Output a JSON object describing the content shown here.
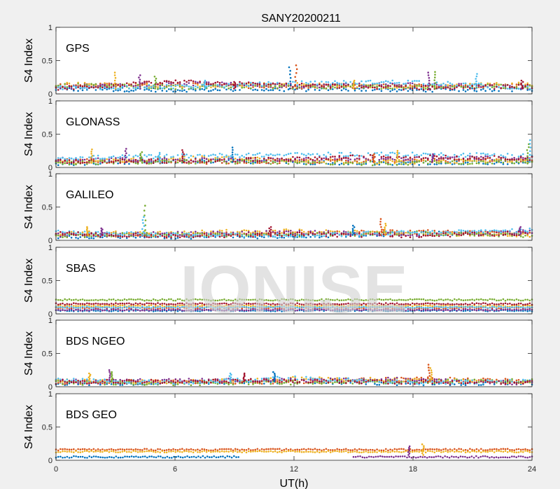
{
  "figure": {
    "title": "SANY20200211",
    "watermark": "IONISE",
    "xlabel": "UT(h)",
    "colors": [
      "#0072BD",
      "#D95319",
      "#EDB120",
      "#7E2F8E",
      "#77AC30",
      "#4DBEEE",
      "#A2142F"
    ]
  },
  "chart_data": [
    {
      "type": "scatter",
      "system": "GPS",
      "ylabel": "S4 Index",
      "xlim": [
        0,
        24
      ],
      "ylim": [
        0,
        1
      ],
      "xticks": [
        "0",
        "6",
        "12",
        "18",
        "24"
      ],
      "yticks": [
        "0",
        "0.5",
        "1"
      ],
      "baseline_range": [
        0.04,
        0.2
      ],
      "spikes": [
        [
          3.0,
          0.32
        ],
        [
          4.2,
          0.28
        ],
        [
          5.0,
          0.26
        ],
        [
          7.5,
          0.2
        ],
        [
          9.0,
          0.18
        ],
        [
          11.8,
          0.4
        ],
        [
          12.1,
          0.43
        ],
        [
          15.0,
          0.2
        ],
        [
          18.8,
          0.32
        ],
        [
          19.1,
          0.33
        ],
        [
          21.2,
          0.3
        ],
        [
          23.5,
          0.2
        ]
      ],
      "series": [
        {
          "values": [
            [
              0,
              0.07
            ],
            [
              6,
              0.06
            ],
            [
              12,
              0.07
            ],
            [
              18,
              0.06
            ],
            [
              24,
              0.07
            ]
          ]
        },
        {
          "values": [
            [
              0,
              0.12
            ],
            [
              6,
              0.14
            ],
            [
              12,
              0.1
            ],
            [
              18,
              0.12
            ],
            [
              24,
              0.13
            ]
          ]
        },
        {
          "values": [
            [
              0,
              0.15
            ],
            [
              6,
              0.12
            ],
            [
              12,
              0.14
            ],
            [
              18,
              0.11
            ],
            [
              24,
              0.15
            ]
          ]
        },
        {
          "values": [
            [
              0,
              0.1
            ],
            [
              6,
              0.16
            ],
            [
              12,
              0.12
            ],
            [
              18,
              0.14
            ],
            [
              24,
              0.1
            ]
          ]
        },
        {
          "values": [
            [
              0,
              0.13
            ],
            [
              6,
              0.1
            ],
            [
              12,
              0.11
            ],
            [
              18,
              0.1
            ],
            [
              24,
              0.12
            ]
          ]
        },
        {
          "values": [
            [
              0,
              0.09
            ],
            [
              6,
              0.11
            ],
            [
              12,
              0.16
            ],
            [
              18,
              0.18
            ],
            [
              24,
              0.09
            ]
          ]
        },
        {
          "values": [
            [
              0,
              0.08
            ],
            [
              6,
              0.18
            ],
            [
              12,
              0.13
            ],
            [
              18,
              0.09
            ],
            [
              24,
              0.11
            ]
          ]
        }
      ]
    },
    {
      "type": "scatter",
      "system": "GLONASS",
      "ylabel": "S4 Index",
      "xlim": [
        0,
        24
      ],
      "ylim": [
        0,
        1
      ],
      "xticks": [
        "0",
        "6",
        "12",
        "18",
        "24"
      ],
      "yticks": [
        "0",
        "0.5",
        "1"
      ],
      "baseline_range": [
        0.03,
        0.2
      ],
      "spikes": [
        [
          1.8,
          0.27
        ],
        [
          3.5,
          0.28
        ],
        [
          4.3,
          0.23
        ],
        [
          5.2,
          0.22
        ],
        [
          6.4,
          0.26
        ],
        [
          8.9,
          0.3
        ],
        [
          16.0,
          0.2
        ],
        [
          17.2,
          0.25
        ],
        [
          19.0,
          0.2
        ],
        [
          23.8,
          0.35
        ],
        [
          23.9,
          0.41
        ]
      ],
      "series": [
        {
          "values": [
            [
              0,
              0.06
            ],
            [
              8,
              0.1
            ],
            [
              16,
              0.06
            ],
            [
              24,
              0.08
            ]
          ]
        },
        {
          "values": [
            [
              0,
              0.1
            ],
            [
              8,
              0.08
            ],
            [
              16,
              0.1
            ],
            [
              24,
              0.12
            ]
          ]
        },
        {
          "values": [
            [
              0,
              0.08
            ],
            [
              8,
              0.15
            ],
            [
              16,
              0.08
            ],
            [
              24,
              0.1
            ]
          ]
        },
        {
          "values": [
            [
              0,
              0.12
            ],
            [
              8,
              0.11
            ],
            [
              16,
              0.13
            ],
            [
              24,
              0.15
            ]
          ]
        },
        {
          "values": [
            [
              0,
              0.07
            ],
            [
              8,
              0.09
            ],
            [
              16,
              0.06
            ],
            [
              24,
              0.09
            ]
          ]
        },
        {
          "values": [
            [
              0,
              0.14
            ],
            [
              8,
              0.18
            ],
            [
              16,
              0.2
            ],
            [
              24,
              0.18
            ]
          ]
        },
        {
          "values": [
            [
              0,
              0.09
            ],
            [
              8,
              0.1
            ],
            [
              16,
              0.16
            ],
            [
              24,
              0.14
            ]
          ]
        }
      ]
    },
    {
      "type": "scatter",
      "system": "GALILEO",
      "ylabel": "S4 Index",
      "xlim": [
        0,
        24
      ],
      "ylim": [
        0,
        1
      ],
      "xticks": [
        "0",
        "6",
        "12",
        "18",
        "24"
      ],
      "yticks": [
        "0",
        "0.5",
        "1"
      ],
      "baseline_range": [
        0.03,
        0.18
      ],
      "spikes": [
        [
          1.6,
          0.2
        ],
        [
          2.3,
          0.18
        ],
        [
          4.5,
          0.52
        ],
        [
          4.4,
          0.35
        ],
        [
          10.8,
          0.2
        ],
        [
          15.0,
          0.22
        ],
        [
          16.4,
          0.32
        ],
        [
          16.6,
          0.25
        ],
        [
          23.4,
          0.2
        ]
      ],
      "series": [
        {
          "values": [
            [
              0,
              0.06
            ],
            [
              6,
              0.05
            ],
            [
              12,
              0.06
            ],
            [
              18,
              0.1
            ],
            [
              24,
              0.12
            ]
          ]
        },
        {
          "values": [
            [
              0,
              0.09
            ],
            [
              6,
              0.08
            ],
            [
              12,
              0.11
            ],
            [
              18,
              0.13
            ],
            [
              24,
              0.1
            ]
          ]
        },
        {
          "values": [
            [
              0,
              0.1
            ],
            [
              6,
              0.12
            ],
            [
              12,
              0.14
            ],
            [
              18,
              0.1
            ],
            [
              24,
              0.08
            ]
          ]
        },
        {
          "values": [
            [
              0,
              0.08
            ],
            [
              6,
              0.1
            ],
            [
              12,
              0.12
            ],
            [
              18,
              0.09
            ],
            [
              24,
              0.13
            ]
          ]
        },
        {
          "values": [
            [
              0,
              0.07
            ],
            [
              6,
              0.09
            ],
            [
              12,
              0.08
            ],
            [
              18,
              0.11
            ],
            [
              24,
              0.07
            ]
          ]
        },
        {
          "values": [
            [
              0,
              0.12
            ],
            [
              6,
              0.08
            ],
            [
              12,
              0.07
            ],
            [
              18,
              0.12
            ],
            [
              24,
              0.15
            ]
          ]
        },
        {
          "values": [
            [
              0,
              0.1
            ],
            [
              6,
              0.06
            ],
            [
              12,
              0.09
            ],
            [
              18,
              0.07
            ],
            [
              24,
              0.11
            ]
          ]
        }
      ]
    },
    {
      "type": "scatter",
      "system": "SBAS",
      "ylabel": "S4 Index",
      "xlim": [
        0,
        24
      ],
      "ylim": [
        0,
        1
      ],
      "xticks": [
        "0",
        "6",
        "12",
        "18",
        "24"
      ],
      "yticks": [
        "0",
        "0.5",
        "1"
      ],
      "baseline_range": [
        0.04,
        0.26
      ],
      "spikes": [],
      "series": [
        {
          "values": [
            [
              0,
              0.05
            ],
            [
              24,
              0.05
            ]
          ]
        },
        {
          "values": [
            [
              0,
              0.09
            ],
            [
              24,
              0.09
            ]
          ]
        },
        {
          "values": [
            [
              0,
              0.12
            ],
            [
              24,
              0.12
            ]
          ]
        },
        {
          "values": [
            [
              0,
              0.06
            ],
            [
              24,
              0.06
            ]
          ]
        },
        {
          "values": [
            [
              0,
              0.21
            ],
            [
              24,
              0.21
            ]
          ]
        },
        {
          "values": [
            [
              0,
              0.1
            ],
            [
              24,
              0.1
            ]
          ]
        },
        {
          "values": [
            [
              0,
              0.15
            ],
            [
              24,
              0.15
            ]
          ]
        }
      ]
    },
    {
      "type": "scatter",
      "system": "BDS NGEO",
      "ylabel": "S4 Index",
      "xlim": [
        0,
        24
      ],
      "ylim": [
        0,
        1
      ],
      "xticks": [
        "0",
        "6",
        "12",
        "18",
        "24"
      ],
      "yticks": [
        "0",
        "0.5",
        "1"
      ],
      "baseline_range": [
        0.03,
        0.15
      ],
      "spikes": [
        [
          1.7,
          0.2
        ],
        [
          2.7,
          0.25
        ],
        [
          2.8,
          0.22
        ],
        [
          8.8,
          0.2
        ],
        [
          9.5,
          0.2
        ],
        [
          11.0,
          0.22
        ],
        [
          18.8,
          0.33
        ],
        [
          18.9,
          0.28
        ]
      ],
      "series": [
        {
          "values": [
            [
              0,
              0.05
            ],
            [
              6,
              0.06
            ],
            [
              12,
              0.08
            ],
            [
              18,
              0.05
            ],
            [
              24,
              0.06
            ]
          ]
        },
        {
          "values": [
            [
              0,
              0.07
            ],
            [
              6,
              0.08
            ],
            [
              12,
              0.07
            ],
            [
              18,
              0.12
            ],
            [
              24,
              0.08
            ]
          ]
        },
        {
          "values": [
            [
              0,
              0.09
            ],
            [
              6,
              0.07
            ],
            [
              12,
              0.12
            ],
            [
              18,
              0.1
            ],
            [
              24,
              0.07
            ]
          ]
        },
        {
          "values": [
            [
              0,
              0.08
            ],
            [
              6,
              0.09
            ],
            [
              12,
              0.1
            ],
            [
              18,
              0.11
            ],
            [
              24,
              0.05
            ]
          ]
        },
        {
          "values": [
            [
              0,
              0.06
            ],
            [
              6,
              0.05
            ],
            [
              12,
              0.06
            ],
            [
              18,
              0.08
            ],
            [
              24,
              0.09
            ]
          ]
        },
        {
          "values": [
            [
              0,
              0.1
            ],
            [
              6,
              0.06
            ],
            [
              12,
              0.13
            ],
            [
              18,
              0.06
            ],
            [
              24,
              0.08
            ]
          ]
        },
        {
          "values": [
            [
              0,
              0.07
            ],
            [
              6,
              0.08
            ],
            [
              12,
              0.09
            ],
            [
              18,
              0.07
            ],
            [
              24,
              0.06
            ]
          ]
        }
      ]
    },
    {
      "type": "scatter",
      "system": "BDS GEO",
      "ylabel": "S4 Index",
      "xlim": [
        0,
        24
      ],
      "ylim": [
        0,
        1
      ],
      "xticks": [
        "0",
        "6",
        "12",
        "18",
        "24"
      ],
      "yticks": [
        "0",
        "0.5",
        "1"
      ],
      "baseline_range": [
        0.03,
        0.24
      ],
      "spikes": [
        [
          18.5,
          0.24
        ],
        [
          17.8,
          0.21
        ]
      ],
      "series": [
        {
          "values": [
            [
              0,
              0.05
            ],
            [
              9.2,
              0.05
            ]
          ]
        },
        {
          "values": [
            [
              0,
              0.16
            ],
            [
              24,
              0.16
            ]
          ]
        },
        {
          "values": [
            [
              0,
              0.13
            ],
            [
              24,
              0.13
            ]
          ]
        },
        {
          "values": [
            [
              15,
              0.05
            ],
            [
              24,
              0.05
            ]
          ]
        }
      ]
    }
  ]
}
